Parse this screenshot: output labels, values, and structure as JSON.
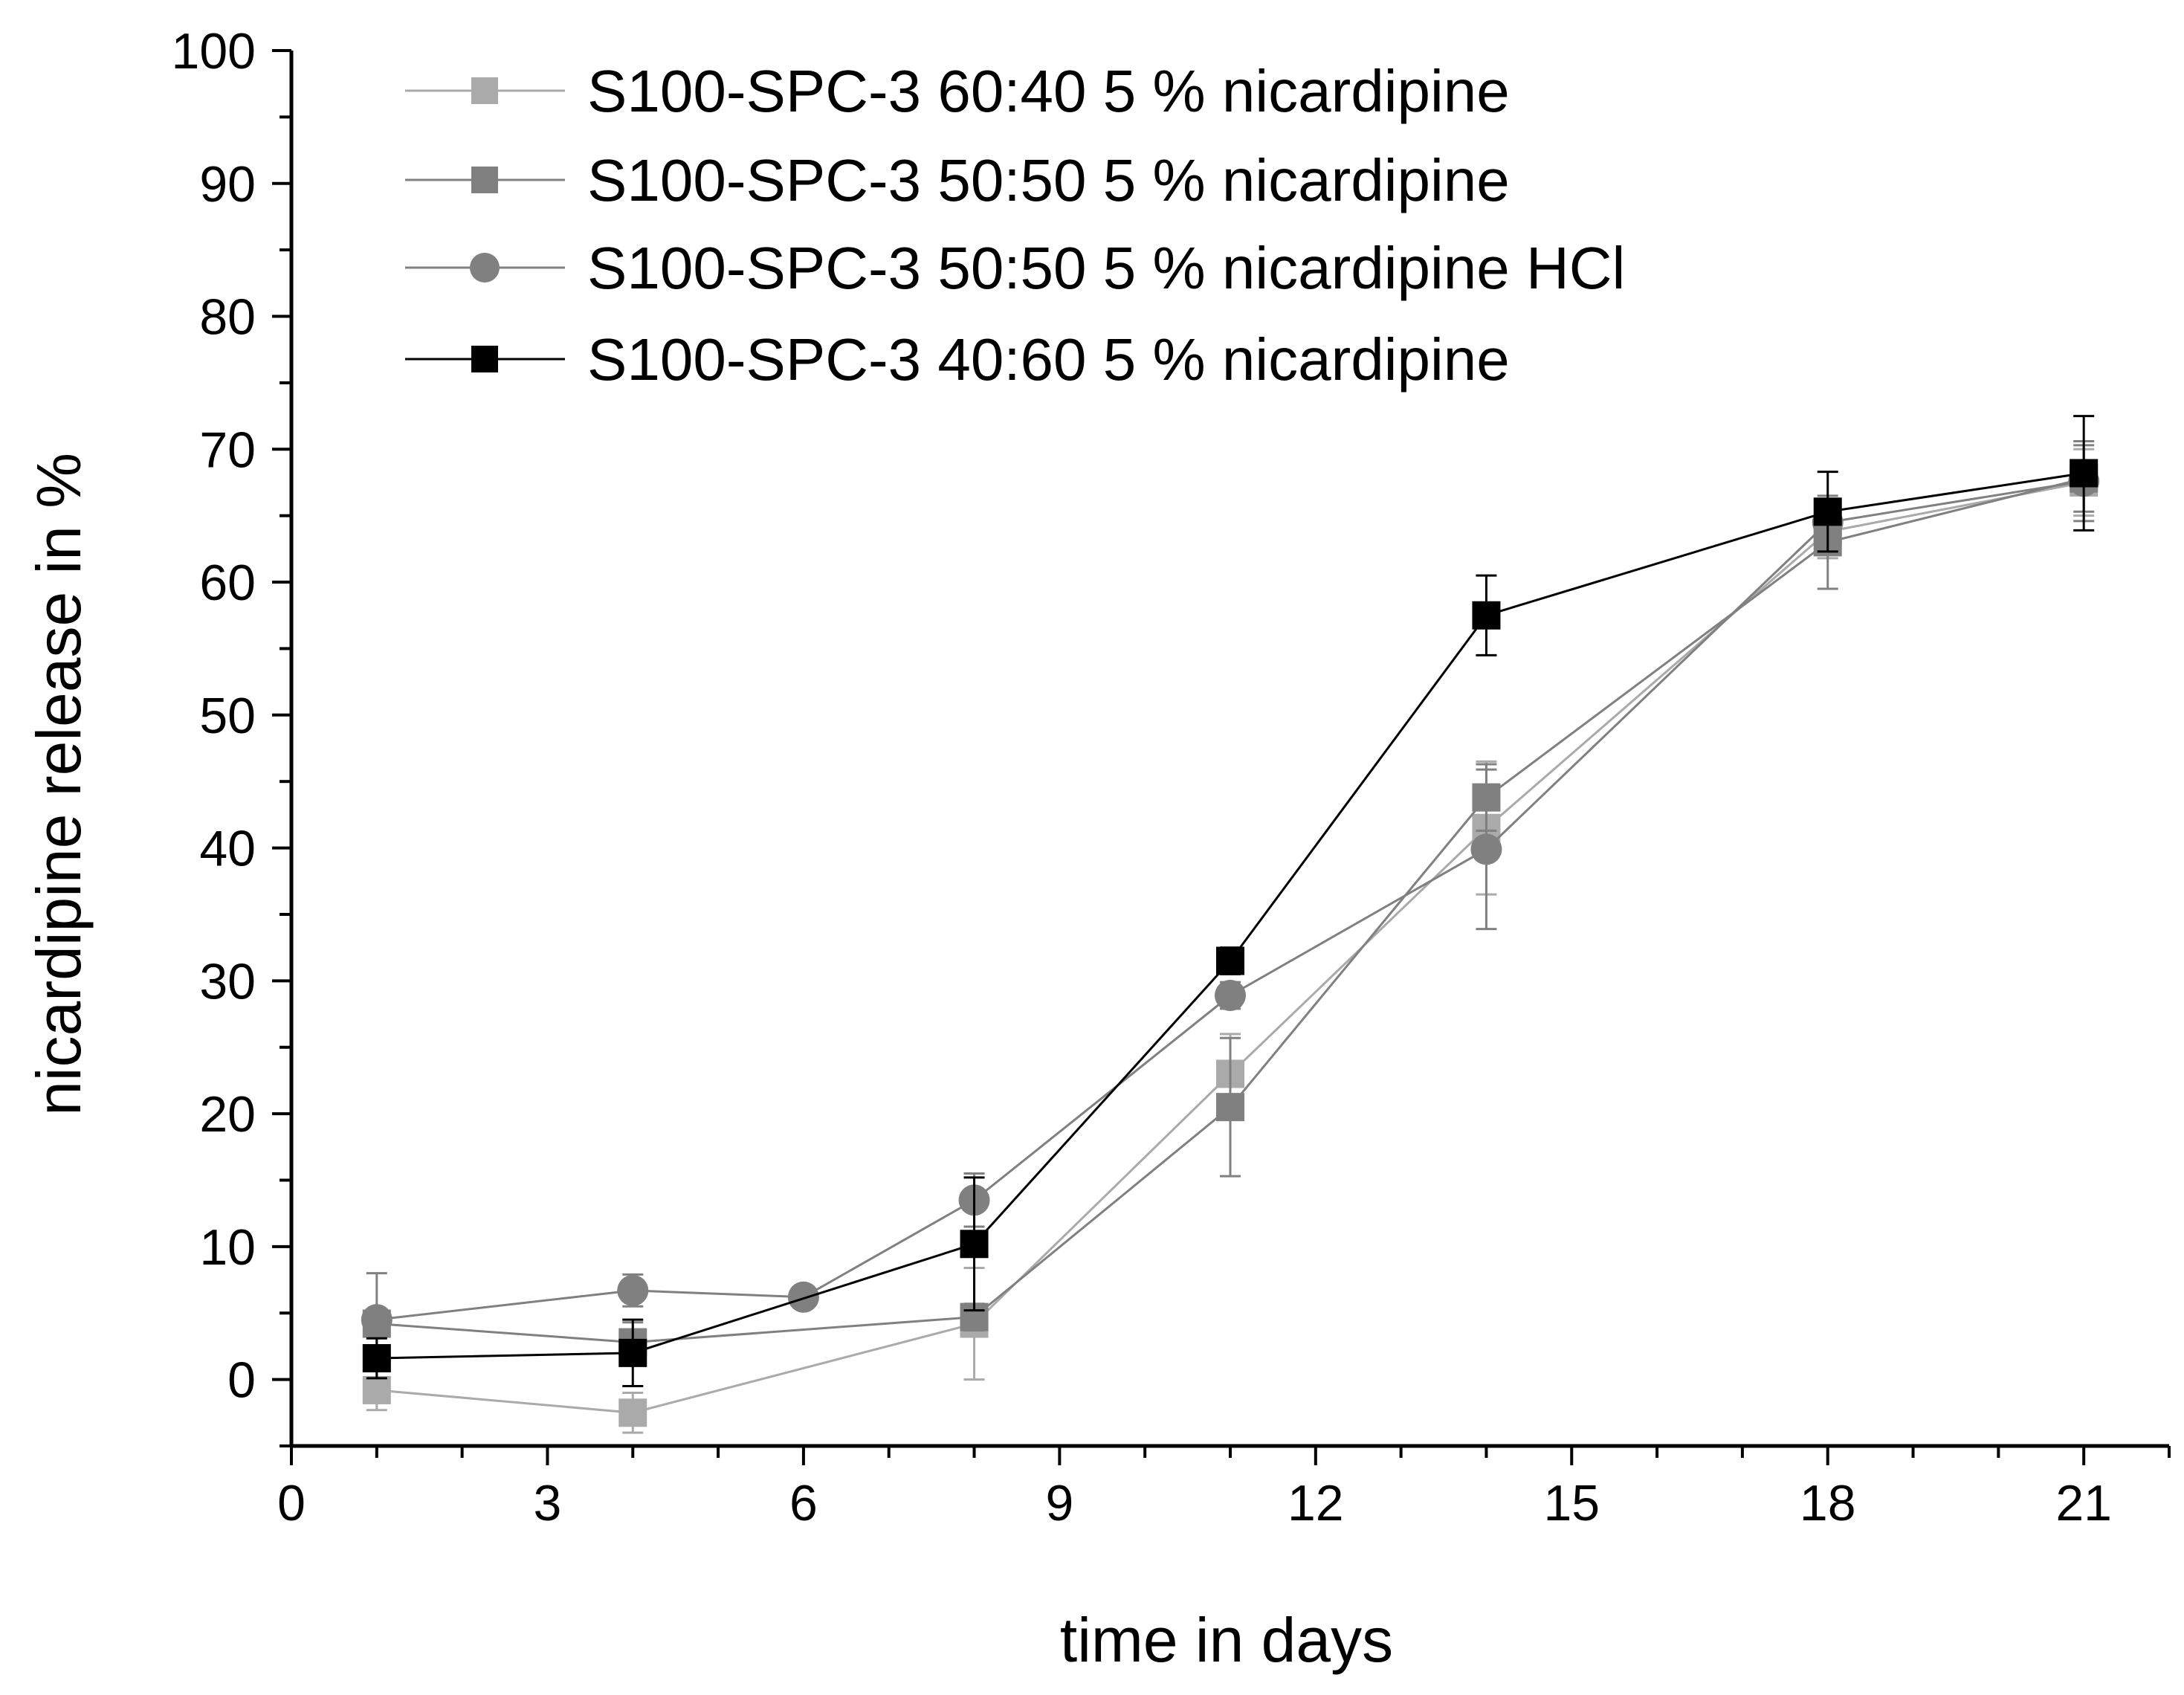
{
  "chart_data": {
    "type": "line",
    "title": "",
    "xlabel": "time in days",
    "ylabel": "nicardipine release in %",
    "xlim": [
      0,
      22
    ],
    "ylim": [
      -5,
      100
    ],
    "x_ticks": [
      "0",
      "3",
      "6",
      "9",
      "12",
      "15",
      "18",
      "21"
    ],
    "y_ticks": [
      "0",
      "10",
      "20",
      "30",
      "40",
      "50",
      "60",
      "70",
      "80",
      "90",
      "100"
    ],
    "x_tick_values": [
      0,
      3,
      6,
      9,
      12,
      15,
      18,
      21
    ],
    "y_tick_values": [
      0,
      10,
      20,
      30,
      40,
      50,
      60,
      70,
      80,
      90,
      100
    ],
    "legend_position": "top-left",
    "series": [
      {
        "name": "S100-SPC-3 60:40 5 % nicardipine",
        "color": "#aaaaaa",
        "marker": "square",
        "x": [
          1,
          4,
          8,
          11,
          14,
          18,
          21
        ],
        "values": [
          -0.8,
          -2.5,
          4.2,
          23.0,
          41.5,
          63.8,
          67.5
        ],
        "errors": [
          1.5,
          1.5,
          4.2,
          3.0,
          5.0,
          2.0,
          2.5
        ]
      },
      {
        "name": "S100-SPC-3 50:50 5 % nicardipine",
        "color": "#808080",
        "marker": "square",
        "x": [
          1,
          4,
          8,
          11,
          14,
          18,
          21
        ],
        "values": [
          4.2,
          2.8,
          4.7,
          20.5,
          43.8,
          63.0,
          67.8
        ],
        "errors": [
          1.0,
          1.5,
          1.0,
          5.2,
          2.5,
          3.5,
          2.5
        ]
      },
      {
        "name": "S100-SPC-3 50:50 5 % nicardipine HCl",
        "color": "#808080",
        "marker": "circle",
        "x": [
          1,
          4,
          6,
          8,
          11,
          14,
          18,
          21
        ],
        "values": [
          4.5,
          6.7,
          6.2,
          13.5,
          28.9,
          39.9,
          64.5,
          67.6
        ],
        "errors": [
          3.5,
          1.2,
          0.8,
          2.0,
          1.0,
          6.0,
          1.5,
          3.0
        ]
      },
      {
        "name": "S100-SPC-3 40:60 5 % nicardipine",
        "color": "#000000",
        "marker": "square",
        "x": [
          1,
          4,
          8,
          11,
          14,
          18,
          21
        ],
        "values": [
          1.6,
          2.0,
          10.2,
          31.5,
          57.5,
          65.3,
          68.2
        ],
        "errors": [
          1.5,
          2.5,
          5.0,
          1.0,
          3.0,
          3.0,
          4.3
        ]
      }
    ]
  }
}
